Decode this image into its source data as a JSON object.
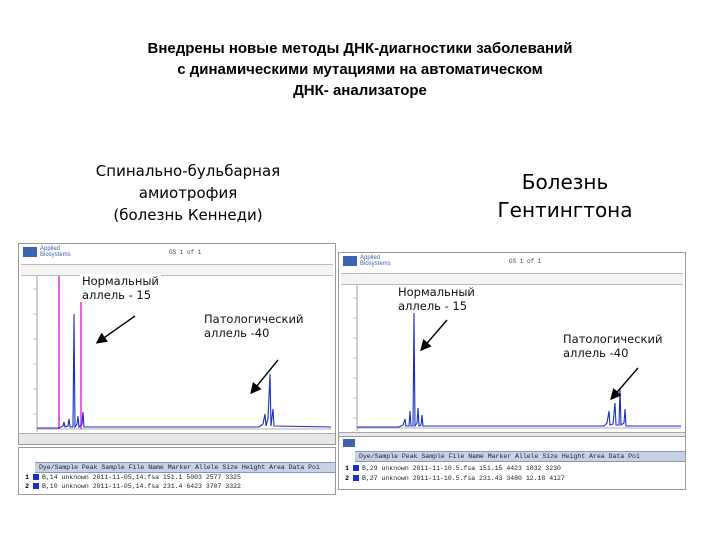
{
  "slide": {
    "title_lines": [
      "Внедрены новые методы ДНК-диагностики заболеваний",
      "с динамическими мутациями на автоматическом",
      "ДНК- анализаторе"
    ],
    "left_heading_lines": [
      "Спинально-бульбарная",
      "амиотрофия",
      "(болезнь Кеннеди)"
    ],
    "right_heading_lines": [
      "Болезнь",
      "Гентингтона"
    ]
  },
  "left": {
    "logo": {
      "line1": "Applied",
      "line2": "Biosystems"
    },
    "header_id": "GS 1 of 1",
    "label_normal": [
      "Нормальный",
      "аллель - 15"
    ],
    "label_pathological": [
      "Патологический",
      "аллель -40"
    ],
    "table": {
      "header": "Dye/Sample Peak  Sample File Name   Marker Allele  Size  Height  Area  Data Poi",
      "rows": [
        {
          "index": "1",
          "text": "B,14   unknown 2011-11-05,14.fsa    151.1 5003  2577 3325"
        },
        {
          "index": "2",
          "text": "B,10   unknown 2011-11-05,14.fsa    231.4 6423  3707 3322"
        }
      ]
    }
  },
  "right": {
    "logo": {
      "line1": "Applied",
      "line2": "Biosystems"
    },
    "header_id": "GS 1 of 1",
    "label_normal": [
      "Нормальный",
      "аллель - 15"
    ],
    "label_pathological": [
      "Патологический",
      "аллель -40"
    ],
    "table": {
      "header": "Dye/Sample Peak  Sample File Name    Marker Allele Size  Height Area  Data Poi",
      "rows": [
        {
          "index": "1",
          "text": "B,29   unknown 2011-11-10.5.fsa     151.15 4423  1032 3230"
        },
        {
          "index": "2",
          "text": "B,27   unknown 2011-11-10.5.fsa     231.43 3480  12.18 4127"
        }
      ]
    }
  },
  "colors": {
    "peak_blue": "#1a2ec8",
    "marker_magenta": "#e020e0",
    "panel_border": "#9a9a9a",
    "table_header": "#c7d2e6"
  }
}
